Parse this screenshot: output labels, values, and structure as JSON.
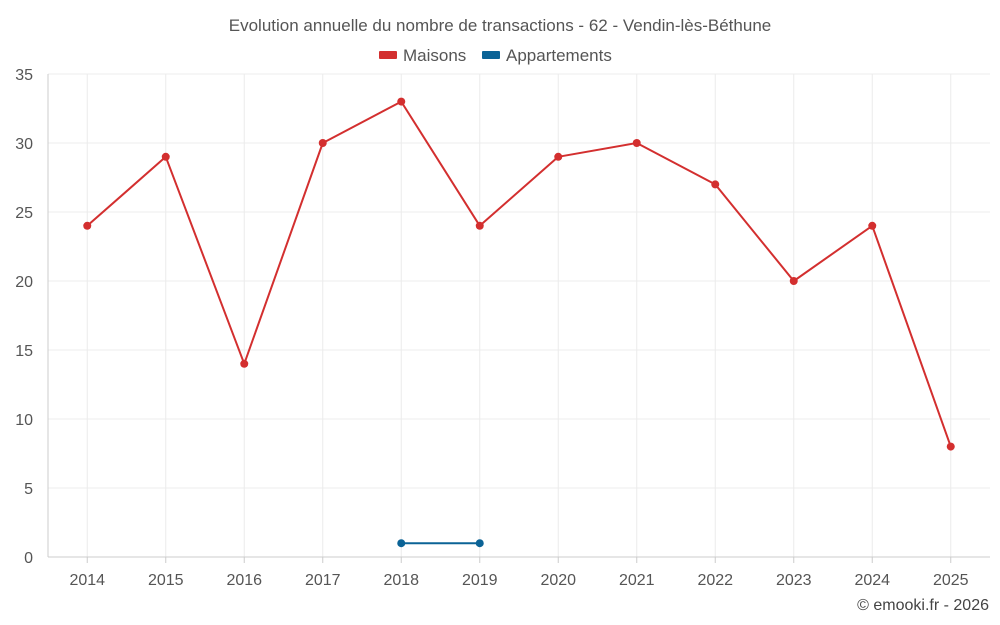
{
  "chart_data": {
    "type": "line",
    "title": "Evolution annuelle du nombre de transactions - 62 - Vendin-lès-Béthune",
    "categories": [
      "2014",
      "2015",
      "2016",
      "2017",
      "2018",
      "2019",
      "2020",
      "2021",
      "2022",
      "2023",
      "2024",
      "2025"
    ],
    "series": [
      {
        "name": "Maisons",
        "color": "#d32f2f",
        "values": [
          24,
          29,
          14,
          30,
          33,
          24,
          29,
          30,
          27,
          20,
          24,
          8
        ]
      },
      {
        "name": "Appartements",
        "color": "#0b6396",
        "values": [
          null,
          null,
          null,
          null,
          1,
          1,
          null,
          null,
          null,
          null,
          null,
          null
        ]
      }
    ],
    "ylim": [
      0,
      35
    ],
    "yticks": [
      0,
      5,
      10,
      15,
      20,
      25,
      30,
      35
    ],
    "legend_position": "top-center",
    "grid": true
  },
  "credit": "© emooki.fr - 2026"
}
